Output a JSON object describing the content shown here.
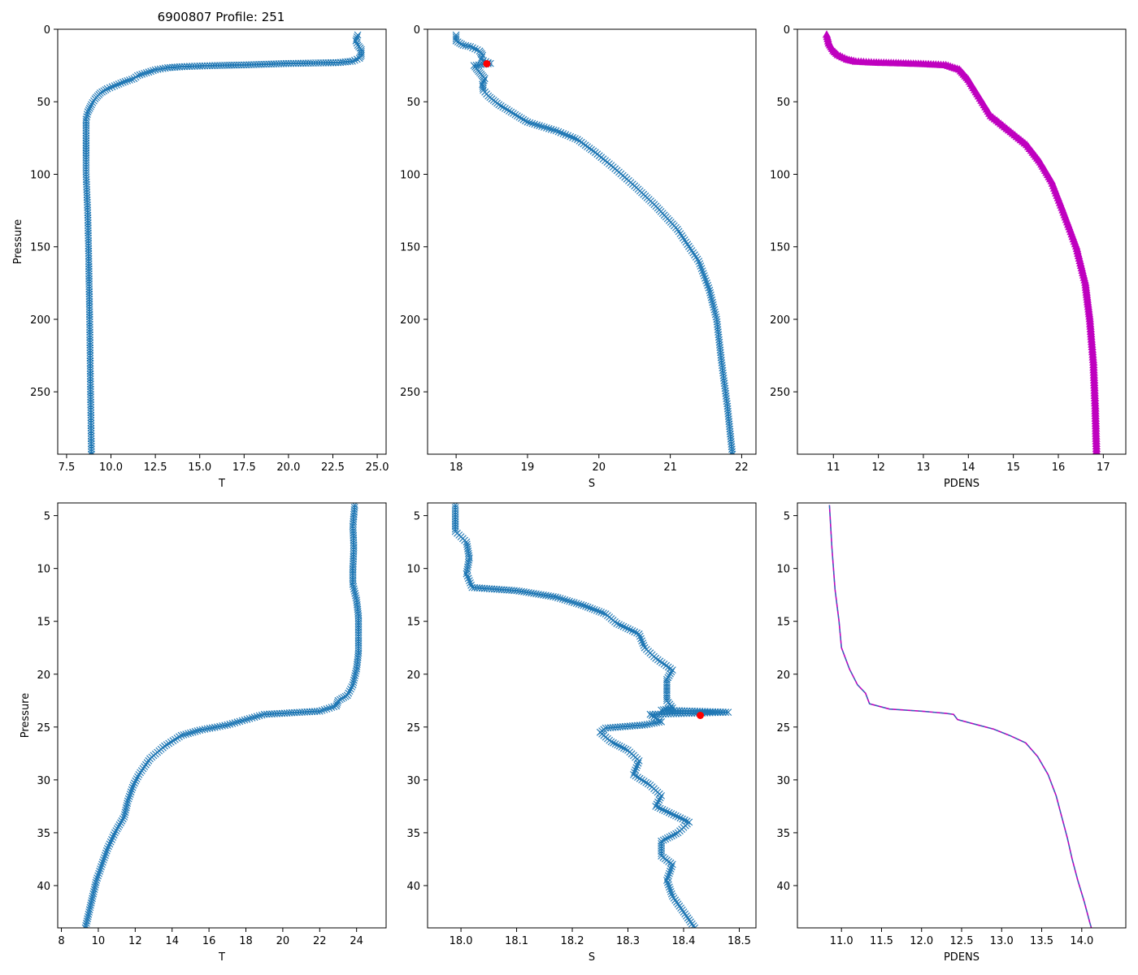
{
  "figure": {
    "title": "6900807 Profile: 251"
  },
  "colors": {
    "series_blue": "#1f77b4",
    "flag_red": "#ff0000",
    "density_magenta": "#bf00bf",
    "density_dash_blue": "#1f77b4"
  },
  "chart_data": [
    {
      "type": "line",
      "panel": "top-left",
      "xlabel": "T",
      "ylabel": "Pressure",
      "xlim": [
        7.0,
        25.5
      ],
      "ylim": [
        293,
        0
      ],
      "xticks": [
        7.5,
        10.0,
        12.5,
        15.0,
        17.5,
        20.0,
        22.5,
        25.0
      ],
      "xtick_labels": [
        "7.5",
        "10.0",
        "12.5",
        "15.0",
        "17.5",
        "20.0",
        "22.5",
        "25.0"
      ],
      "yticks": [
        0,
        50,
        100,
        150,
        200,
        250
      ],
      "ytick_labels": [
        "0",
        "50",
        "100",
        "150",
        "200",
        "250"
      ],
      "marker": "x",
      "series": [
        {
          "name": "T",
          "points": [
            [
              23.9,
              4
            ],
            [
              23.8,
              8
            ],
            [
              23.9,
              11
            ],
            [
              24.1,
              14
            ],
            [
              24.1,
              18
            ],
            [
              24.0,
              20
            ],
            [
              23.6,
              22
            ],
            [
              22.8,
              23
            ],
            [
              20.0,
              23.6
            ],
            [
              17.5,
              24.6
            ],
            [
              16.0,
              25.0
            ],
            [
              14.0,
              25.8
            ],
            [
              13.2,
              26.5
            ],
            [
              12.5,
              28
            ],
            [
              12.0,
              30
            ],
            [
              11.5,
              32
            ],
            [
              11.3,
              34
            ],
            [
              10.8,
              36
            ],
            [
              10.2,
              39
            ],
            [
              9.8,
              41
            ],
            [
              9.4,
              44
            ],
            [
              9.1,
              48
            ],
            [
              8.9,
              52
            ],
            [
              8.7,
              57
            ],
            [
              8.6,
              62
            ],
            [
              8.6,
              70
            ],
            [
              8.6,
              80
            ],
            [
              8.6,
              100
            ],
            [
              8.7,
              130
            ],
            [
              8.75,
              160
            ],
            [
              8.8,
              200
            ],
            [
              8.85,
              250
            ],
            [
              8.9,
              293
            ]
          ]
        }
      ]
    },
    {
      "type": "line",
      "panel": "top-middle",
      "xlabel": "S",
      "ylabel": "",
      "xlim": [
        17.6,
        22.2
      ],
      "ylim": [
        293,
        0
      ],
      "xticks": [
        18,
        19,
        20,
        21,
        22
      ],
      "xtick_labels": [
        "18",
        "19",
        "20",
        "21",
        "22"
      ],
      "yticks": [
        0,
        50,
        100,
        150,
        200,
        250
      ],
      "ytick_labels": [
        "0",
        "50",
        "100",
        "150",
        "200",
        "250"
      ],
      "marker": "x",
      "series": [
        {
          "name": "S",
          "points": [
            [
              18.0,
              4
            ],
            [
              18.0,
              8
            ],
            [
              18.1,
              11
            ],
            [
              18.2,
              12
            ],
            [
              18.33,
              15
            ],
            [
              18.37,
              18
            ],
            [
              18.35,
              21
            ],
            [
              18.48,
              23.6
            ],
            [
              18.25,
              25
            ],
            [
              18.3,
              28
            ],
            [
              18.35,
              31
            ],
            [
              18.4,
              34
            ],
            [
              18.37,
              38
            ],
            [
              18.38,
              42
            ],
            [
              18.45,
              46
            ],
            [
              18.6,
              52
            ],
            [
              18.8,
              58
            ],
            [
              19.0,
              64
            ],
            [
              19.4,
              70
            ],
            [
              19.7,
              76
            ],
            [
              19.95,
              85
            ],
            [
              20.2,
              95
            ],
            [
              20.5,
              108
            ],
            [
              20.8,
              122
            ],
            [
              21.1,
              138
            ],
            [
              21.4,
              160
            ],
            [
              21.55,
              180
            ],
            [
              21.65,
              200
            ],
            [
              21.72,
              230
            ],
            [
              21.8,
              260
            ],
            [
              21.87,
              293
            ]
          ]
        }
      ],
      "flags": [
        {
          "name": "flagged S",
          "x": 18.43,
          "y": 23.8
        }
      ]
    },
    {
      "type": "scatter",
      "panel": "top-right",
      "xlabel": "PDENS",
      "ylabel": "",
      "xlim": [
        10.2,
        17.5
      ],
      "ylim": [
        293,
        0
      ],
      "xticks": [
        11,
        12,
        13,
        14,
        15,
        16,
        17
      ],
      "xtick_labels": [
        "11",
        "12",
        "13",
        "14",
        "15",
        "16",
        "17"
      ],
      "yticks": [
        0,
        50,
        100,
        150,
        200,
        250
      ],
      "ytick_labels": [
        "0",
        "50",
        "100",
        "150",
        "200",
        "250"
      ],
      "marker": "triangle",
      "series": [
        {
          "name": "PDENS",
          "points": [
            [
              10.85,
              4
            ],
            [
              10.9,
              10
            ],
            [
              11.0,
              15
            ],
            [
              11.1,
              18
            ],
            [
              11.3,
              21
            ],
            [
              11.5,
              22.5
            ],
            [
              11.9,
              23.2
            ],
            [
              12.5,
              23.7
            ],
            [
              13.0,
              24.2
            ],
            [
              13.5,
              25
            ],
            [
              13.8,
              28
            ],
            [
              14.0,
              35
            ],
            [
              14.2,
              45
            ],
            [
              14.5,
              60
            ],
            [
              14.9,
              70
            ],
            [
              15.3,
              80
            ],
            [
              15.6,
              92
            ],
            [
              15.85,
              105
            ],
            [
              16.1,
              125
            ],
            [
              16.4,
              150
            ],
            [
              16.6,
              175
            ],
            [
              16.7,
              200
            ],
            [
              16.78,
              230
            ],
            [
              16.82,
              260
            ],
            [
              16.85,
              293
            ]
          ]
        }
      ]
    },
    {
      "type": "line",
      "panel": "bottom-left",
      "xlabel": "T",
      "ylabel": "Pressure",
      "xlim": [
        7.8,
        25.6
      ],
      "ylim": [
        44,
        3.8
      ],
      "xticks": [
        8,
        10,
        12,
        14,
        16,
        18,
        20,
        22,
        24
      ],
      "xtick_labels": [
        "8",
        "10",
        "12",
        "14",
        "16",
        "18",
        "20",
        "22",
        "24"
      ],
      "yticks": [
        5,
        10,
        15,
        20,
        25,
        30,
        35,
        40
      ],
      "ytick_labels": [
        "5",
        "10",
        "15",
        "20",
        "25",
        "30",
        "35",
        "40"
      ],
      "marker": "x",
      "series": [
        {
          "name": "T",
          "points": [
            [
              23.9,
              4
            ],
            [
              23.8,
              6
            ],
            [
              23.85,
              8
            ],
            [
              23.8,
              10
            ],
            [
              23.8,
              11.5
            ],
            [
              24.0,
              13
            ],
            [
              24.1,
              14.5
            ],
            [
              24.1,
              16
            ],
            [
              24.1,
              18
            ],
            [
              24.0,
              19.5
            ],
            [
              23.8,
              21
            ],
            [
              23.5,
              22
            ],
            [
              23.0,
              22.5
            ],
            [
              22.9,
              23
            ],
            [
              22.0,
              23.5
            ],
            [
              19.0,
              23.8
            ],
            [
              17.0,
              24.8
            ],
            [
              15.5,
              25.3
            ],
            [
              14.5,
              25.8
            ],
            [
              13.6,
              26.8
            ],
            [
              12.8,
              28
            ],
            [
              12.2,
              29.5
            ],
            [
              11.9,
              30.5
            ],
            [
              11.6,
              32
            ],
            [
              11.4,
              33.5
            ],
            [
              10.9,
              35
            ],
            [
              10.5,
              36.5
            ],
            [
              10.2,
              38
            ],
            [
              9.9,
              39.5
            ],
            [
              9.7,
              41
            ],
            [
              9.5,
              42.5
            ],
            [
              9.3,
              44
            ]
          ]
        }
      ]
    },
    {
      "type": "line",
      "panel": "bottom-middle",
      "xlabel": "S",
      "ylabel": "",
      "xlim": [
        17.94,
        18.53
      ],
      "ylim": [
        44,
        3.8
      ],
      "xticks": [
        18.0,
        18.1,
        18.2,
        18.3,
        18.4,
        18.5
      ],
      "xtick_labels": [
        "18.0",
        "18.1",
        "18.2",
        "18.3",
        "18.4",
        "18.5"
      ],
      "yticks": [
        5,
        10,
        15,
        20,
        25,
        30,
        35,
        40
      ],
      "ytick_labels": [
        "5",
        "10",
        "15",
        "20",
        "25",
        "30",
        "35",
        "40"
      ],
      "marker": "x",
      "series": [
        {
          "name": "S",
          "points": [
            [
              17.99,
              4
            ],
            [
              17.99,
              6.5
            ],
            [
              18.01,
              7.5
            ],
            [
              18.015,
              9
            ],
            [
              18.01,
              10.5
            ],
            [
              18.02,
              11.8
            ],
            [
              18.1,
              12.1
            ],
            [
              18.17,
              12.7
            ],
            [
              18.22,
              13.5
            ],
            [
              18.26,
              14.3
            ],
            [
              18.28,
              15.2
            ],
            [
              18.32,
              16.2
            ],
            [
              18.33,
              17.5
            ],
            [
              18.35,
              18.5
            ],
            [
              18.38,
              19.6
            ],
            [
              18.37,
              20.5
            ],
            [
              18.37,
              21.5
            ],
            [
              18.37,
              22.5
            ],
            [
              18.38,
              23.2
            ],
            [
              18.36,
              23.4
            ],
            [
              18.48,
              23.6
            ],
            [
              18.34,
              23.8
            ],
            [
              18.36,
              24.5
            ],
            [
              18.33,
              24.8
            ],
            [
              18.26,
              25.1
            ],
            [
              18.25,
              25.5
            ],
            [
              18.27,
              26.4
            ],
            [
              18.3,
              27.2
            ],
            [
              18.32,
              28.2
            ],
            [
              18.31,
              29.5
            ],
            [
              18.34,
              30.5
            ],
            [
              18.36,
              31.5
            ],
            [
              18.35,
              32.5
            ],
            [
              18.37,
              33
            ],
            [
              18.41,
              34
            ],
            [
              18.39,
              35
            ],
            [
              18.36,
              35.8
            ],
            [
              18.36,
              37.2
            ],
            [
              18.38,
              38
            ],
            [
              18.37,
              39.5
            ],
            [
              18.38,
              41
            ],
            [
              18.4,
              42.5
            ],
            [
              18.42,
              44
            ]
          ]
        }
      ],
      "flags": [
        {
          "name": "flagged S",
          "x": 18.43,
          "y": 23.9
        }
      ]
    },
    {
      "type": "line",
      "panel": "bottom-right",
      "xlabel": "PDENS",
      "ylabel": "",
      "xlim": [
        10.45,
        14.55
      ],
      "ylim": [
        44,
        3.8
      ],
      "xticks": [
        11.0,
        11.5,
        12.0,
        12.5,
        13.0,
        13.5,
        14.0
      ],
      "xtick_labels": [
        "11.0",
        "11.5",
        "12.0",
        "12.5",
        "13.0",
        "13.5",
        "14.0"
      ],
      "yticks": [
        5,
        10,
        15,
        20,
        25,
        30,
        35,
        40
      ],
      "ytick_labels": [
        "5",
        "10",
        "15",
        "20",
        "25",
        "30",
        "35",
        "40"
      ],
      "marker": "none",
      "series": [
        {
          "name": "PDENS",
          "points": [
            [
              10.85,
              4
            ],
            [
              10.88,
              8
            ],
            [
              10.92,
              12
            ],
            [
              10.97,
              15
            ],
            [
              11.0,
              17.5
            ],
            [
              11.1,
              19.5
            ],
            [
              11.2,
              21
            ],
            [
              11.3,
              21.8
            ],
            [
              11.35,
              22.8
            ],
            [
              11.6,
              23.3
            ],
            [
              12.0,
              23.5
            ],
            [
              12.3,
              23.7
            ],
            [
              12.4,
              23.8
            ],
            [
              12.45,
              24.3
            ],
            [
              12.7,
              24.8
            ],
            [
              12.9,
              25.2
            ],
            [
              13.1,
              25.8
            ],
            [
              13.3,
              26.5
            ],
            [
              13.45,
              27.8
            ],
            [
              13.58,
              29.5
            ],
            [
              13.68,
              31.5
            ],
            [
              13.75,
              33.5
            ],
            [
              13.82,
              35.5
            ],
            [
              13.88,
              37.5
            ],
            [
              13.95,
              39.5
            ],
            [
              14.03,
              41.5
            ],
            [
              14.1,
              43.5
            ],
            [
              14.12,
              44
            ]
          ]
        }
      ]
    }
  ]
}
